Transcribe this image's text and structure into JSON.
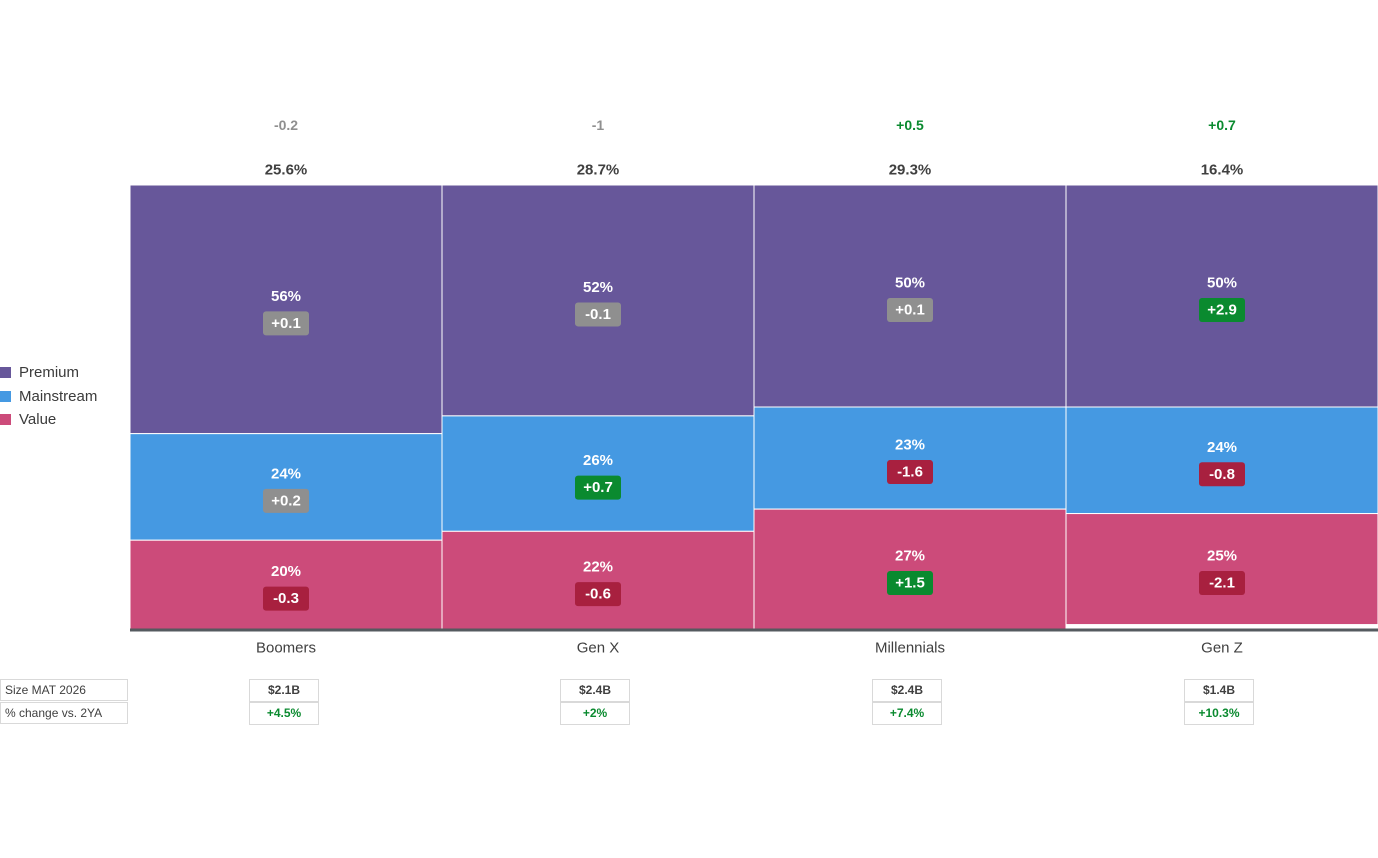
{
  "colors": {
    "premium": "#67579a",
    "mainstream": "#4599e2",
    "value": "#cc4b7a",
    "badge_pos": "#0a8a2f",
    "badge_neg": "#a8203f",
    "badge_neutral": "#8f8f8f",
    "text_pos": "#0a8a2f",
    "text_neutral": "#8f8f8f"
  },
  "legend": [
    {
      "label": "Premium",
      "color": "#67579a"
    },
    {
      "label": "Mainstream",
      "color": "#4599e2"
    },
    {
      "label": "Value",
      "color": "#cc4b7a"
    }
  ],
  "chart_data": {
    "type": "bar",
    "stacking": "100% stacked (mekko style, equal widths)",
    "categories": [
      "Boomers",
      "Gen X",
      "Millennials",
      "Gen Z"
    ],
    "column_share": [
      "25.6%",
      "28.7%",
      "29.3%",
      "16.4%"
    ],
    "column_share_change": [
      {
        "text": "-0.2",
        "tone": "neutral"
      },
      {
        "text": "-1",
        "tone": "neutral"
      },
      {
        "text": "+0.5",
        "tone": "pos"
      },
      {
        "text": "+0.7",
        "tone": "pos"
      }
    ],
    "series": [
      {
        "name": "Premium",
        "values": [
          56,
          52,
          50,
          50
        ],
        "labels": [
          "56%",
          "52%",
          "50%",
          "50%"
        ],
        "changes": [
          {
            "text": "+0.1",
            "tone": "neutral"
          },
          {
            "text": "-0.1",
            "tone": "neutral"
          },
          {
            "text": "+0.1",
            "tone": "neutral"
          },
          {
            "text": "+2.9",
            "tone": "pos"
          }
        ]
      },
      {
        "name": "Mainstream",
        "values": [
          24,
          26,
          23,
          24
        ],
        "labels": [
          "24%",
          "26%",
          "23%",
          "24%"
        ],
        "changes": [
          {
            "text": "+0.2",
            "tone": "neutral"
          },
          {
            "text": "+0.7",
            "tone": "pos"
          },
          {
            "text": "-1.6",
            "tone": "neg"
          },
          {
            "text": "-0.8",
            "tone": "neg"
          }
        ]
      },
      {
        "name": "Value",
        "values": [
          20,
          22,
          27,
          25
        ],
        "labels": [
          "20%",
          "22%",
          "27%",
          "25%"
        ],
        "changes": [
          {
            "text": "-0.3",
            "tone": "neg"
          },
          {
            "text": "-0.6",
            "tone": "neg"
          },
          {
            "text": "+1.5",
            "tone": "pos"
          },
          {
            "text": "-2.1",
            "tone": "neg"
          }
        ]
      }
    ],
    "ylim": [
      0,
      100
    ],
    "grid": false,
    "legend_position": "left"
  },
  "metrics": {
    "size_label": "Size MAT 2026",
    "change_label": "% change vs. 2YA",
    "size_values": [
      "$2.1B",
      "$2.4B",
      "$2.4B",
      "$1.4B"
    ],
    "change_values": [
      "+4.5%",
      "+2%",
      "+7.4%",
      "+10.3%"
    ]
  }
}
